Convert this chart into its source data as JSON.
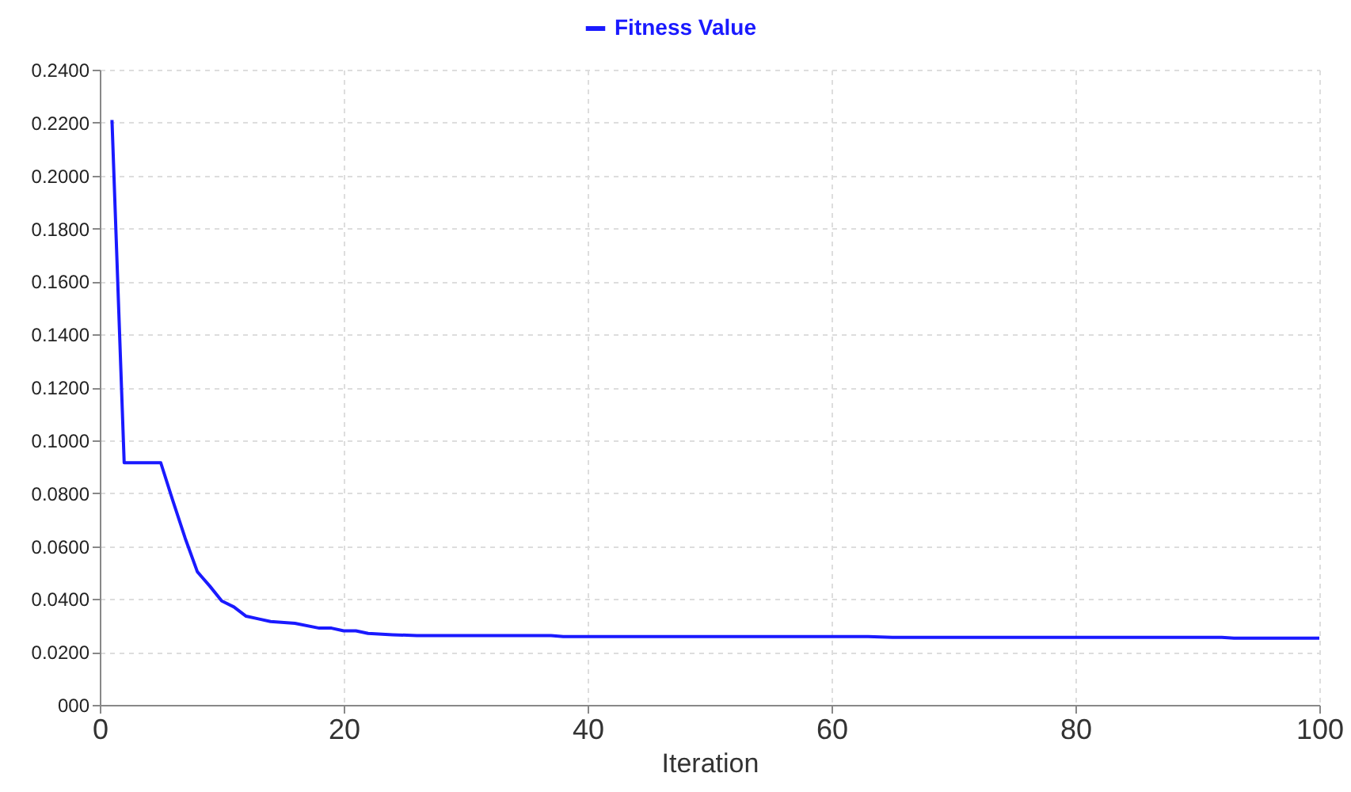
{
  "chart_data": {
    "type": "line",
    "xlabel": "Iteration",
    "x": [
      1,
      2,
      3,
      4,
      5,
      6,
      7,
      8,
      9,
      10,
      11,
      12,
      13,
      14,
      16,
      18,
      19,
      20,
      21,
      22,
      24,
      26,
      37,
      38,
      63,
      65,
      92,
      93,
      100
    ],
    "series": [
      {
        "name": "Fitness Value",
        "color": "#1a1aff",
        "values": [
          0.221,
          0.0915,
          0.0915,
          0.0915,
          0.0915,
          0.077,
          0.063,
          0.0503,
          0.045,
          0.0393,
          0.037,
          0.0335,
          0.0325,
          0.0315,
          0.0308,
          0.029,
          0.029,
          0.028,
          0.028,
          0.027,
          0.0265,
          0.0262,
          0.0262,
          0.0258,
          0.0258,
          0.0255,
          0.0255,
          0.0252,
          0.0252
        ]
      }
    ],
    "xlim": [
      0,
      100
    ],
    "xticks": [
      0,
      20,
      40,
      60,
      80,
      100
    ],
    "ylim": [
      0,
      0.24
    ],
    "yticks": [
      {
        "value": 0,
        "label": "000"
      },
      {
        "value": 0.02,
        "label": "0.0200"
      },
      {
        "value": 0.04,
        "label": "0.0400"
      },
      {
        "value": 0.06,
        "label": "0.0600"
      },
      {
        "value": 0.08,
        "label": "0.0800"
      },
      {
        "value": 0.1,
        "label": "0.1000"
      },
      {
        "value": 0.12,
        "label": "0.1200"
      },
      {
        "value": 0.14,
        "label": "0.1400"
      },
      {
        "value": 0.16,
        "label": "0.1600"
      },
      {
        "value": 0.18,
        "label": "0.1800"
      },
      {
        "value": 0.2,
        "label": "0.2000"
      },
      {
        "value": 0.22,
        "label": "0.2200"
      },
      {
        "value": 0.24,
        "label": "0.2400"
      }
    ],
    "grid": true,
    "legend": "top",
    "marker": "none",
    "line_style": "solid"
  }
}
